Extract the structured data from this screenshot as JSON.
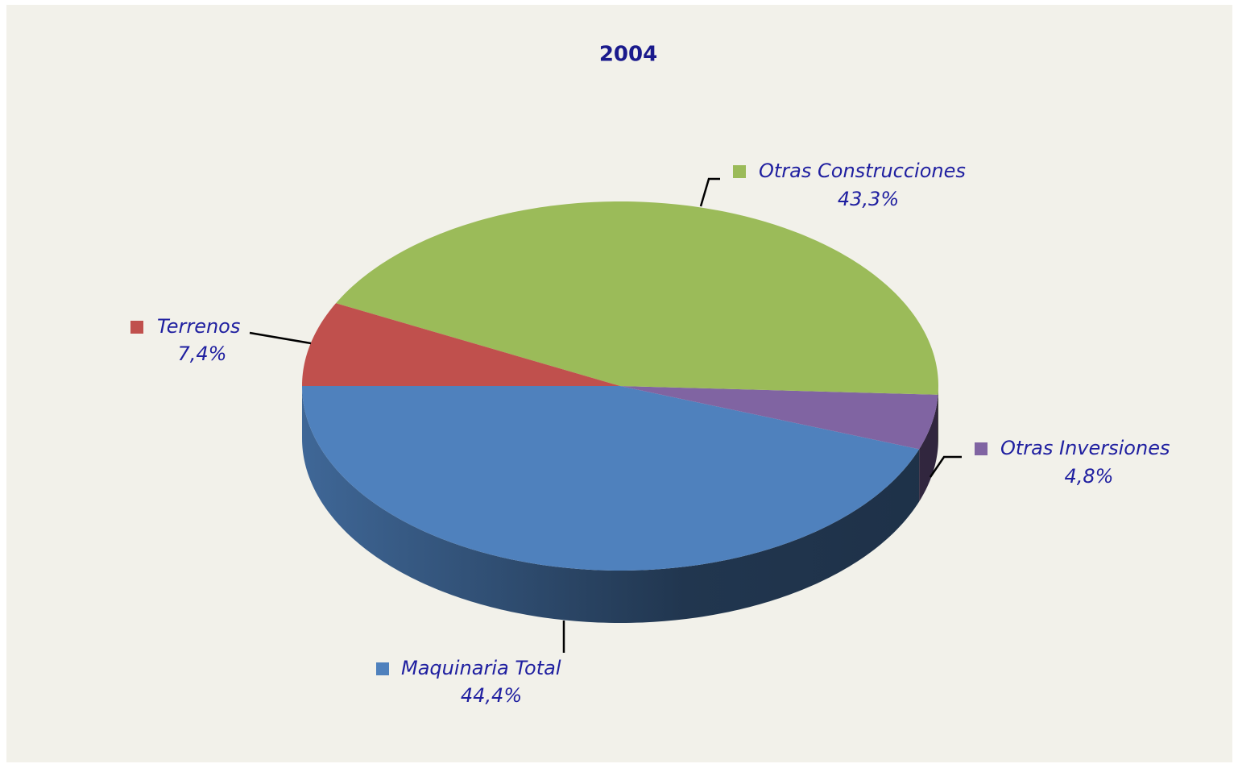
{
  "chart_data": {
    "type": "pie",
    "title": "2004",
    "categories": [
      "Maquinaria Total",
      "Otras Inversiones",
      "Otras Construcciones",
      "Terrenos"
    ],
    "values": [
      44.4,
      4.8,
      43.3,
      7.4
    ],
    "value_labels": [
      "44,4%",
      "4,8%",
      "43,3%",
      "7,4%"
    ],
    "colors": [
      "#4f81bd",
      "#8064a2",
      "#9bbb59",
      "#c0504d"
    ]
  }
}
